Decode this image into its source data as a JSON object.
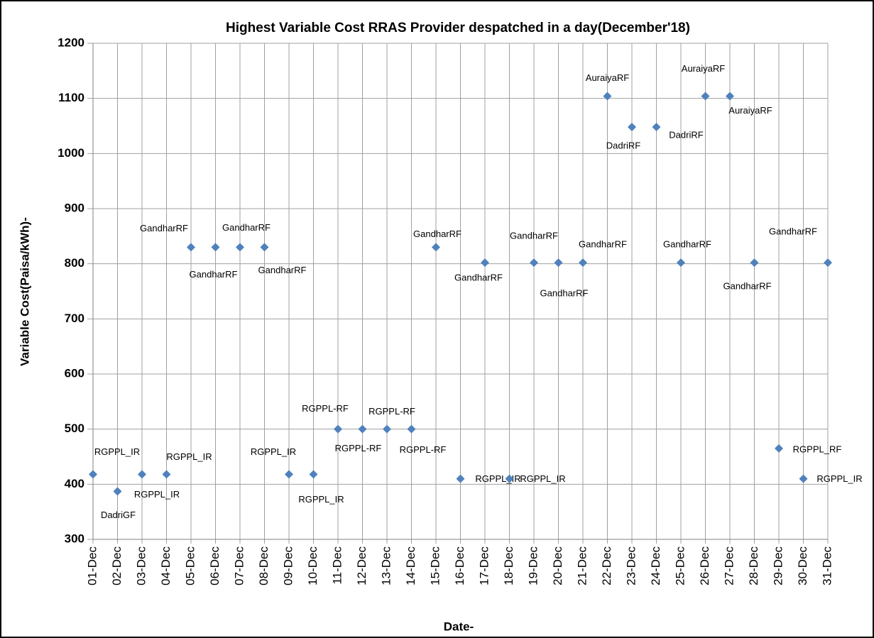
{
  "chart_data": {
    "type": "scatter",
    "title": "Highest Variable  Cost RRAS Provider despatched in a day(December'18)",
    "x_label": "Date-",
    "y_label": "Variable Cost(Paisa/kWh)-",
    "categories": [
      "01-Dec",
      "02-Dec",
      "03-Dec",
      "04-Dec",
      "05-Dec",
      "06-Dec",
      "07-Dec",
      "08-Dec",
      "09-Dec",
      "10-Dec",
      "11-Dec",
      "12-Dec",
      "13-Dec",
      "14-Dec",
      "15-Dec",
      "16-Dec",
      "17-Dec",
      "18-Dec",
      "19-Dec",
      "20-Dec",
      "21-Dec",
      "22-Dec",
      "23-Dec",
      "24-Dec",
      "25-Dec",
      "26-Dec",
      "27-Dec",
      "28-Dec",
      "29-Dec",
      "30-Dec",
      "31-Dec"
    ],
    "values": [
      418,
      387,
      418,
      418,
      830,
      830,
      830,
      830,
      418,
      418,
      500,
      500,
      500,
      500,
      830,
      410,
      802,
      410,
      802,
      802,
      802,
      1104,
      1048,
      1048,
      802,
      1104,
      1104,
      802,
      465,
      410,
      802
    ],
    "point_labels": [
      "RGPPL_IR",
      "DadriGF",
      "RGPPL_IR",
      "RGPPL_IR",
      "GandharRF",
      "GandharRF",
      "GandharRF",
      "GandharRF",
      "RGPPL_IR",
      "RGPPL_IR",
      "RGPPL-RF",
      "RGPPL-RF",
      "RGPPL-RF",
      "RGPPL-RF",
      "GandharRF",
      "RGPPL_IR",
      "GandharRF",
      "RGPPL_IR",
      "GandharRF",
      "GandharRF",
      "GandharRF",
      "AuraiyaRF",
      "DadriRF",
      "DadriRF",
      "GandharRF",
      "AuraiyaRF",
      "AuraiyaRF",
      "GandharRF",
      "RGPPL_RF",
      "RGPPL_IR",
      "GandharRF"
    ],
    "color": "#4f81bd",
    "ylim": [
      300,
      1200
    ],
    "yticks": [
      300,
      400,
      500,
      600,
      700,
      800,
      900,
      1000,
      1100,
      1200
    ],
    "grid": true
  }
}
